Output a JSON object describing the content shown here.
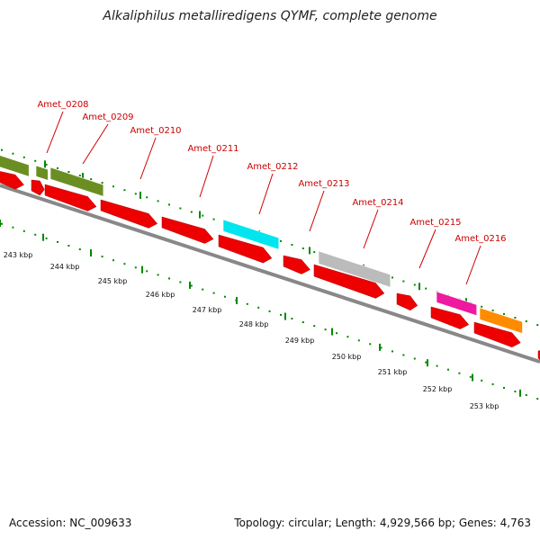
{
  "title": "Alkaliphilus metalliredigens QYMF, complete genome",
  "footer": {
    "accession": "Accession: NC_009633",
    "summary": "Topology: circular; Length: 4,929,566 bp; Genes: 4,763"
  },
  "colors": {
    "backbone": "#888888",
    "cds": "#ee0000",
    "label": "#cc0000",
    "tick": "#008800",
    "olive": "#6b8e23",
    "cyan": "#00e5ee",
    "gray": "#bbbbbb",
    "magenta": "#ee1aa0",
    "orange": "#ff8c00"
  },
  "scale_labels": [
    "243 kbp",
    "244 kbp",
    "245 kbp",
    "246 kbp",
    "247 kbp",
    "248 kbp",
    "249 kbp",
    "250 kbp",
    "251 kbp",
    "252 kbp",
    "253 kbp"
  ],
  "gene_labels": [
    "Amet_0208",
    "Amet_0209",
    "Amet_0210",
    "Amet_0211",
    "Amet_0212",
    "Amet_0213",
    "Amet_0214",
    "Amet_0215",
    "Amet_0216"
  ]
}
